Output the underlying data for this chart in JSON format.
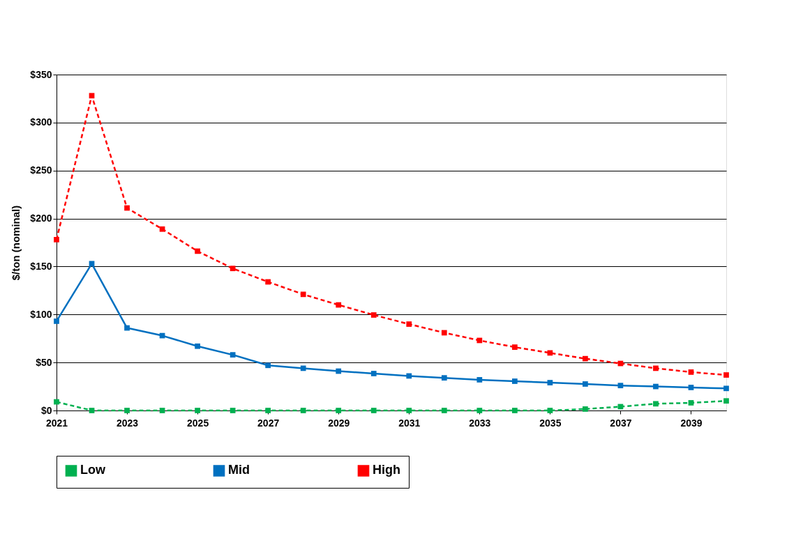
{
  "chart_data": {
    "type": "line",
    "ylabel": "$/ton (nominal)",
    "x": [
      2021,
      2022,
      2023,
      2024,
      2025,
      2026,
      2027,
      2028,
      2029,
      2030,
      2031,
      2032,
      2033,
      2034,
      2035,
      2036,
      2037,
      2038,
      2039,
      2040
    ],
    "series": [
      {
        "name": "Low",
        "color": "#00b050",
        "line_style": "dashed",
        "values": [
          9,
          0,
          0,
          0,
          0,
          0,
          0,
          0,
          0,
          0,
          0,
          0,
          0,
          0,
          0,
          1.5,
          4,
          7,
          8,
          10
        ]
      },
      {
        "name": "Mid",
        "color": "#0070c0",
        "line_style": "solid",
        "values": [
          93,
          153,
          86,
          78,
          67,
          58,
          47,
          44,
          41,
          38.5,
          36,
          34,
          32,
          30.5,
          29,
          27.6,
          26,
          25,
          24,
          23
        ]
      },
      {
        "name": "High",
        "color": "#ff0000",
        "line_style": "dashed",
        "values": [
          178,
          328,
          211,
          189,
          166,
          148,
          134,
          121,
          110,
          99.5,
          90,
          81,
          73,
          66,
          60,
          54,
          49,
          44,
          40,
          37
        ]
      }
    ],
    "xlim": [
      2021,
      2040
    ],
    "xticks": [
      2021,
      2023,
      2025,
      2027,
      2029,
      2031,
      2033,
      2035,
      2037,
      2039
    ],
    "ylim": [
      0,
      350
    ],
    "yticks": [
      {
        "value": 0,
        "label": "$0"
      },
      {
        "value": 50,
        "label": "$50"
      },
      {
        "value": 100,
        "label": "$100"
      },
      {
        "value": 150,
        "label": "$150"
      },
      {
        "value": 200,
        "label": "$200"
      },
      {
        "value": 250,
        "label": "$250"
      },
      {
        "value": 300,
        "label": "$300"
      },
      {
        "value": 350,
        "label": "$350"
      }
    ],
    "grid": "y",
    "legend": "bottom",
    "marker": "square"
  }
}
